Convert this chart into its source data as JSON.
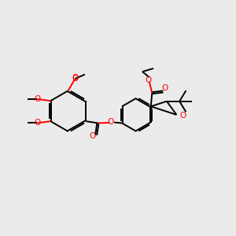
{
  "bg": "#ebebeb",
  "bc": "#000000",
  "oc": "#ff0000",
  "lw": 1.4,
  "figsize": [
    3.0,
    3.0
  ],
  "dpi": 100,
  "xlim": [
    0,
    10
  ],
  "ylim": [
    0,
    10
  ]
}
